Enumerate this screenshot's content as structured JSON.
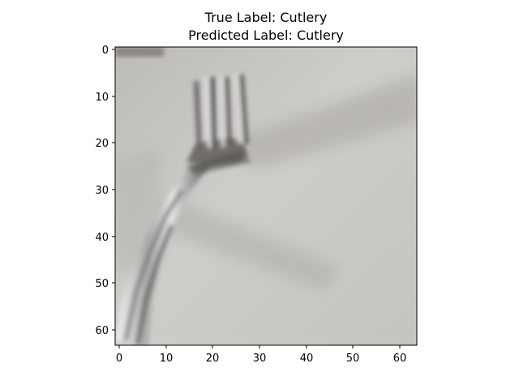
{
  "figure": {
    "title_line_1": "True Label: Cutlery",
    "title_line_2": "Predicted Label: Cutlery"
  },
  "image": {
    "subject": "fork",
    "pixel_grid": [
      64,
      64
    ],
    "background_color": "#c9c7c2",
    "object_colors": [
      "#5a5856",
      "#8c8a87",
      "#e8e8e6"
    ]
  },
  "axes": {
    "x_ticks": [
      "0",
      "10",
      "20",
      "30",
      "40",
      "50",
      "60"
    ],
    "y_ticks": [
      "0",
      "10",
      "20",
      "30",
      "40",
      "50",
      "60"
    ]
  }
}
